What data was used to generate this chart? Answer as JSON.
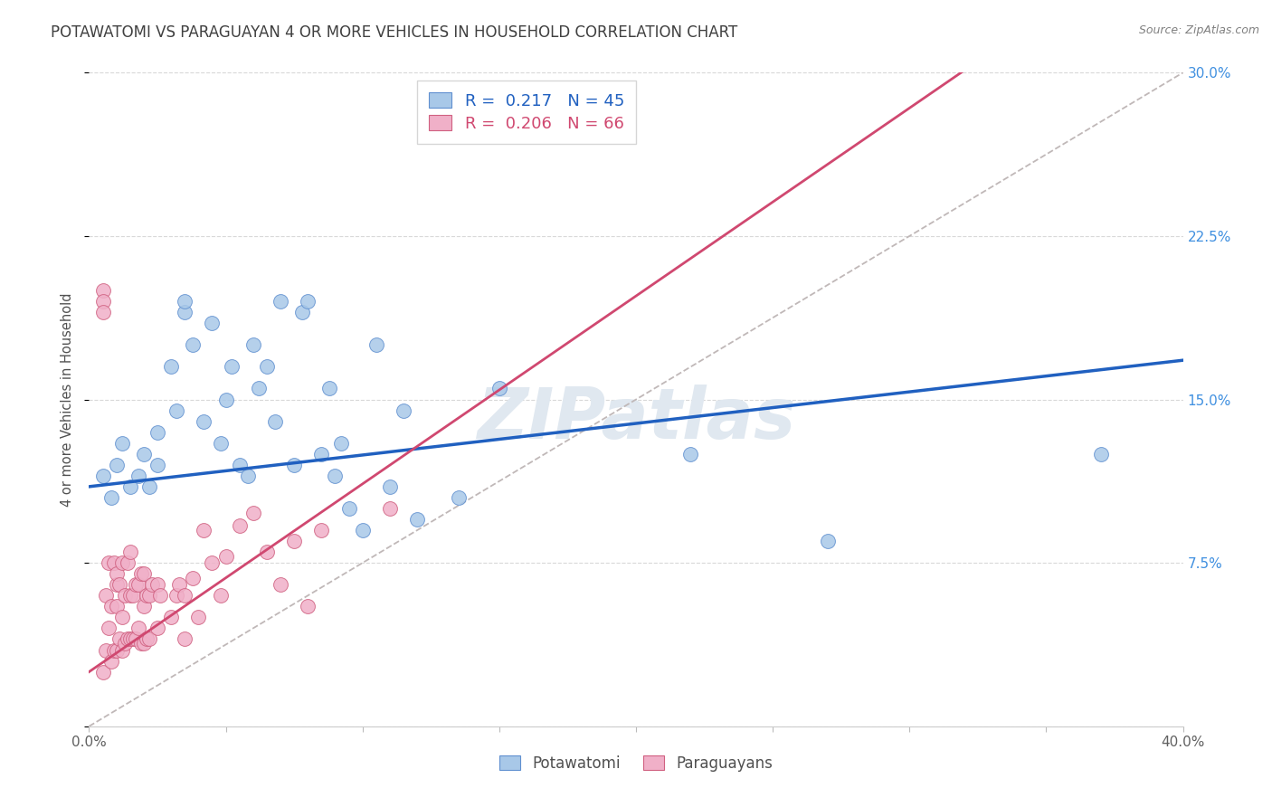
{
  "title": "POTAWATOMI VS PARAGUAYAN 4 OR MORE VEHICLES IN HOUSEHOLD CORRELATION CHART",
  "source": "Source: ZipAtlas.com",
  "ylabel": "4 or more Vehicles in Household",
  "xlim": [
    0.0,
    0.4
  ],
  "ylim": [
    0.0,
    0.3
  ],
  "xticks": [
    0.0,
    0.05,
    0.1,
    0.15,
    0.2,
    0.25,
    0.3,
    0.35,
    0.4
  ],
  "xticklabels": [
    "0.0%",
    "",
    "",
    "",
    "",
    "",
    "",
    "",
    "40.0%"
  ],
  "yticks": [
    0.0,
    0.075,
    0.15,
    0.225,
    0.3
  ],
  "yticklabels_right": [
    "",
    "7.5%",
    "15.0%",
    "22.5%",
    "30.0%"
  ],
  "blue_r": 0.217,
  "blue_n": 45,
  "pink_r": 0.206,
  "pink_n": 66,
  "watermark": "ZIPatlas",
  "blue_scatter_color": "#a8c8e8",
  "blue_edge_color": "#6090d0",
  "pink_scatter_color": "#f0b0c8",
  "pink_edge_color": "#d06080",
  "blue_line_color": "#2060c0",
  "pink_line_color": "#d04870",
  "diagonal_color": "#c0b8b8",
  "grid_color": "#d8d8d8",
  "potawatomi_x": [
    0.005,
    0.008,
    0.01,
    0.012,
    0.015,
    0.018,
    0.02,
    0.022,
    0.025,
    0.025,
    0.03,
    0.032,
    0.035,
    0.035,
    0.038,
    0.042,
    0.045,
    0.048,
    0.05,
    0.052,
    0.055,
    0.058,
    0.06,
    0.062,
    0.065,
    0.068,
    0.07,
    0.075,
    0.078,
    0.08,
    0.085,
    0.088,
    0.09,
    0.092,
    0.095,
    0.1,
    0.105,
    0.11,
    0.115,
    0.12,
    0.135,
    0.15,
    0.22,
    0.27,
    0.37
  ],
  "potawatomi_y": [
    0.115,
    0.105,
    0.12,
    0.13,
    0.11,
    0.115,
    0.125,
    0.11,
    0.135,
    0.12,
    0.165,
    0.145,
    0.19,
    0.195,
    0.175,
    0.14,
    0.185,
    0.13,
    0.15,
    0.165,
    0.12,
    0.115,
    0.175,
    0.155,
    0.165,
    0.14,
    0.195,
    0.12,
    0.19,
    0.195,
    0.125,
    0.155,
    0.115,
    0.13,
    0.1,
    0.09,
    0.175,
    0.11,
    0.145,
    0.095,
    0.105,
    0.155,
    0.125,
    0.085,
    0.125
  ],
  "paraguayan_x": [
    0.005,
    0.005,
    0.005,
    0.005,
    0.006,
    0.006,
    0.007,
    0.007,
    0.008,
    0.008,
    0.009,
    0.009,
    0.01,
    0.01,
    0.01,
    0.01,
    0.011,
    0.011,
    0.012,
    0.012,
    0.012,
    0.013,
    0.013,
    0.014,
    0.014,
    0.015,
    0.015,
    0.015,
    0.016,
    0.016,
    0.017,
    0.017,
    0.018,
    0.018,
    0.019,
    0.019,
    0.02,
    0.02,
    0.02,
    0.021,
    0.021,
    0.022,
    0.022,
    0.023,
    0.025,
    0.025,
    0.026,
    0.03,
    0.032,
    0.033,
    0.035,
    0.035,
    0.038,
    0.04,
    0.042,
    0.045,
    0.048,
    0.05,
    0.055,
    0.06,
    0.065,
    0.07,
    0.075,
    0.08,
    0.085,
    0.11
  ],
  "paraguayan_y": [
    0.2,
    0.195,
    0.19,
    0.025,
    0.035,
    0.06,
    0.045,
    0.075,
    0.03,
    0.055,
    0.035,
    0.075,
    0.035,
    0.055,
    0.065,
    0.07,
    0.04,
    0.065,
    0.035,
    0.05,
    0.075,
    0.038,
    0.06,
    0.04,
    0.075,
    0.04,
    0.06,
    0.08,
    0.04,
    0.06,
    0.04,
    0.065,
    0.045,
    0.065,
    0.038,
    0.07,
    0.038,
    0.055,
    0.07,
    0.04,
    0.06,
    0.04,
    0.06,
    0.065,
    0.045,
    0.065,
    0.06,
    0.05,
    0.06,
    0.065,
    0.04,
    0.06,
    0.068,
    0.05,
    0.09,
    0.075,
    0.06,
    0.078,
    0.092,
    0.098,
    0.08,
    0.065,
    0.085,
    0.055,
    0.09,
    0.1
  ]
}
